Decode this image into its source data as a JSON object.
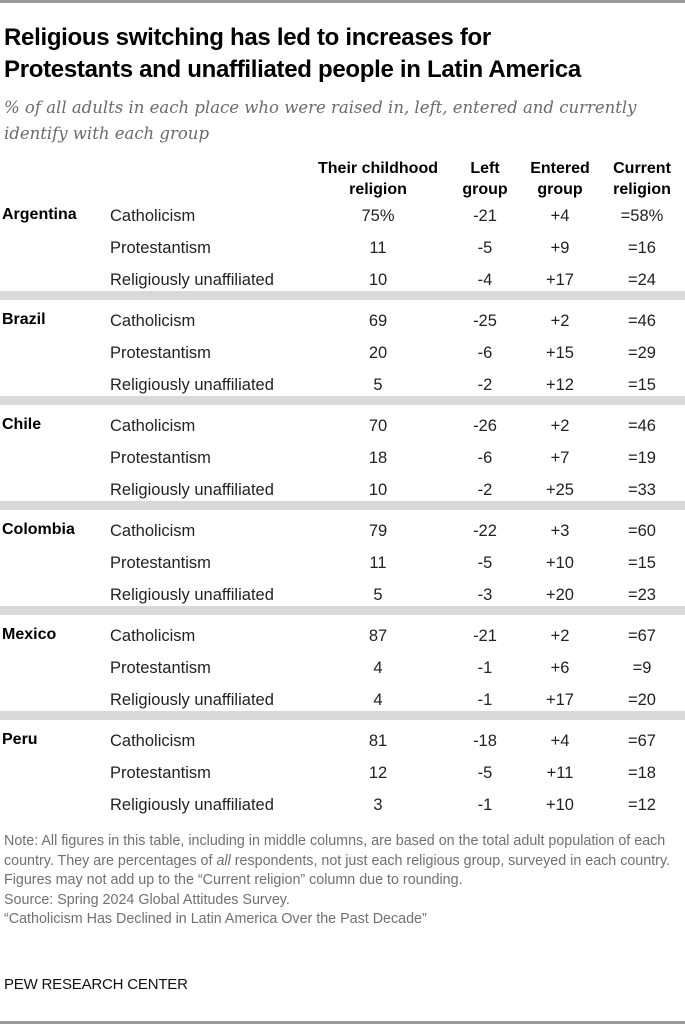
{
  "header": {
    "title_line1": "Religious switching has led to increases for",
    "title_line2": "Protestants and unaffiliated people in Latin America",
    "subtitle_line1": "% of all adults in each place who were raised in, left, entered and currently",
    "subtitle_line2": "identify with each group"
  },
  "columns": {
    "childhood_l1": "Their childhood",
    "childhood_l2": "religion",
    "left_l1": "Left",
    "left_l2": "group",
    "entered_l1": "Entered",
    "entered_l2": "group",
    "current_l1": "Current",
    "current_l2": "religion"
  },
  "countries": [
    {
      "name": "Argentina",
      "rows": [
        {
          "religion": "Catholicism",
          "childhood": "75%",
          "left": "-21",
          "entered": "+4",
          "current": "=58%"
        },
        {
          "religion": "Protestantism",
          "childhood": "11",
          "left": "-5",
          "entered": "+9",
          "current": "=16"
        },
        {
          "religion": "Religiously unaffiliated",
          "childhood": "10",
          "left": "-4",
          "entered": "+17",
          "current": "=24"
        }
      ]
    },
    {
      "name": "Brazil",
      "rows": [
        {
          "religion": "Catholicism",
          "childhood": "69",
          "left": "-25",
          "entered": "+2",
          "current": "=46"
        },
        {
          "religion": "Protestantism",
          "childhood": "20",
          "left": "-6",
          "entered": "+15",
          "current": "=29"
        },
        {
          "religion": "Religiously unaffiliated",
          "childhood": "5",
          "left": "-2",
          "entered": "+12",
          "current": "=15"
        }
      ]
    },
    {
      "name": "Chile",
      "rows": [
        {
          "religion": "Catholicism",
          "childhood": "70",
          "left": "-26",
          "entered": "+2",
          "current": "=46"
        },
        {
          "religion": "Protestantism",
          "childhood": "18",
          "left": "-6",
          "entered": "+7",
          "current": "=19"
        },
        {
          "religion": "Religiously unaffiliated",
          "childhood": "10",
          "left": "-2",
          "entered": "+25",
          "current": "=33"
        }
      ]
    },
    {
      "name": "Colombia",
      "rows": [
        {
          "religion": "Catholicism",
          "childhood": "79",
          "left": "-22",
          "entered": "+3",
          "current": "=60"
        },
        {
          "religion": "Protestantism",
          "childhood": "11",
          "left": "-5",
          "entered": "+10",
          "current": "=15"
        },
        {
          "religion": "Religiously unaffiliated",
          "childhood": "5",
          "left": "-3",
          "entered": "+20",
          "current": "=23"
        }
      ]
    },
    {
      "name": "Mexico",
      "rows": [
        {
          "religion": "Catholicism",
          "childhood": "87",
          "left": "-21",
          "entered": "+2",
          "current": "=67"
        },
        {
          "religion": "Protestantism",
          "childhood": "4",
          "left": "-1",
          "entered": "+6",
          "current": "=9"
        },
        {
          "religion": "Religiously unaffiliated",
          "childhood": "4",
          "left": "-1",
          "entered": "+17",
          "current": "=20"
        }
      ]
    },
    {
      "name": "Peru",
      "rows": [
        {
          "religion": "Catholicism",
          "childhood": "81",
          "left": "-18",
          "entered": "+4",
          "current": "=67"
        },
        {
          "religion": "Protestantism",
          "childhood": "12",
          "left": "-5",
          "entered": "+11",
          "current": "=18"
        },
        {
          "religion": "Religiously unaffiliated",
          "childhood": "3",
          "left": "-1",
          "entered": "+10",
          "current": "=12"
        }
      ]
    }
  ],
  "footer": {
    "note_pre": "Note: All figures in this table, including in middle columns, are based on the total adult population of each country. They are percentages of ",
    "note_em": "all",
    "note_post": " respondents, not just each religious group, surveyed in each country. Figures may not add up to the “Current religion” column due to rounding.",
    "source": "Source: Spring 2024 Global Attitudes Survey.",
    "report": "“Catholicism Has Declined in Latin America Over the Past Decade”",
    "brand": "PEW RESEARCH CENTER"
  },
  "colors": {
    "separator": "#d9d9d9",
    "note_text": "#707070",
    "subtitle_text": "#6b6b6b"
  },
  "chart_data": {
    "type": "table",
    "title": "Religious switching has led to increases for Protestants and unaffiliated people in Latin America",
    "subtitle": "% of all adults in each place who were raised in, left, entered and currently identify with each group",
    "columns": [
      "Country",
      "Religion",
      "Their childhood religion",
      "Left group",
      "Entered group",
      "Current religion"
    ],
    "rows": [
      [
        "Argentina",
        "Catholicism",
        75,
        -21,
        4,
        58
      ],
      [
        "Argentina",
        "Protestantism",
        11,
        -5,
        9,
        16
      ],
      [
        "Argentina",
        "Religiously unaffiliated",
        10,
        -4,
        17,
        24
      ],
      [
        "Brazil",
        "Catholicism",
        69,
        -25,
        2,
        46
      ],
      [
        "Brazil",
        "Protestantism",
        20,
        -6,
        15,
        29
      ],
      [
        "Brazil",
        "Religiously unaffiliated",
        5,
        -2,
        12,
        15
      ],
      [
        "Chile",
        "Catholicism",
        70,
        -26,
        2,
        46
      ],
      [
        "Chile",
        "Protestantism",
        18,
        -6,
        7,
        19
      ],
      [
        "Chile",
        "Religiously unaffiliated",
        10,
        -2,
        25,
        33
      ],
      [
        "Colombia",
        "Catholicism",
        79,
        -22,
        3,
        60
      ],
      [
        "Colombia",
        "Protestantism",
        11,
        -5,
        10,
        15
      ],
      [
        "Colombia",
        "Religiously unaffiliated",
        5,
        -3,
        20,
        23
      ],
      [
        "Mexico",
        "Catholicism",
        87,
        -21,
        2,
        67
      ],
      [
        "Mexico",
        "Protestantism",
        4,
        -1,
        6,
        9
      ],
      [
        "Mexico",
        "Religiously unaffiliated",
        4,
        -1,
        17,
        20
      ],
      [
        "Peru",
        "Catholicism",
        81,
        -18,
        4,
        67
      ],
      [
        "Peru",
        "Protestantism",
        12,
        -5,
        11,
        18
      ],
      [
        "Peru",
        "Religiously unaffiliated",
        3,
        -1,
        10,
        12
      ]
    ],
    "note": "All figures in this table, including in middle columns, are based on the total adult population of each country. They are percentages of all respondents, not just each religious group, surveyed in each country. Figures may not add up to the “Current religion” column due to rounding.",
    "source": "Spring 2024 Global Attitudes Survey."
  }
}
